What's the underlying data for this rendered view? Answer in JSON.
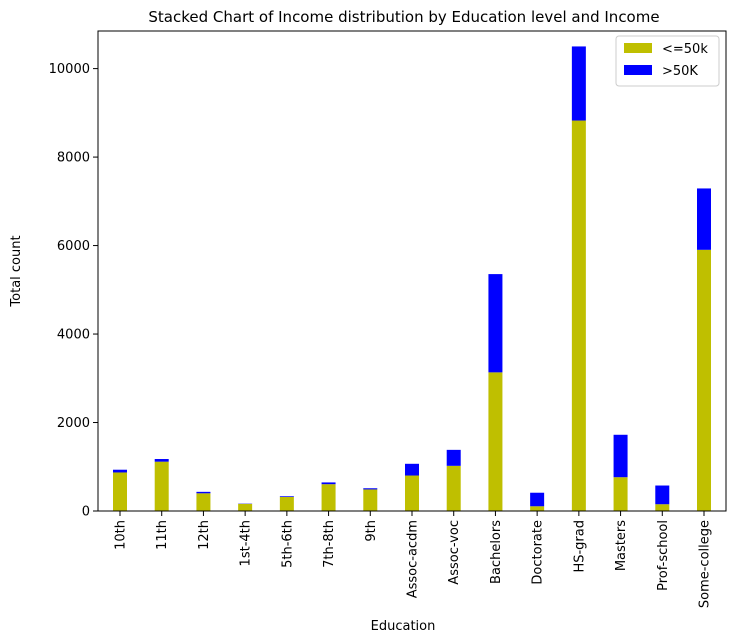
{
  "chart_data": {
    "type": "bar",
    "stacked": true,
    "title": "Stacked Chart of Income distribution by Education level and Income",
    "xlabel": "Education",
    "ylabel": "Total count",
    "ylim": [
      0,
      10850
    ],
    "yticks": [
      0,
      2000,
      4000,
      6000,
      8000,
      10000
    ],
    "grid": false,
    "legend_position": "top-right",
    "categories": [
      "10th",
      "11th",
      "12th",
      "1st-4th",
      "5th-6th",
      "7th-8th",
      "9th",
      "Assoc-acdm",
      "Assoc-voc",
      "Bachelors",
      "Doctorate",
      "HS-grad",
      "Masters",
      "Prof-school",
      "Some-college"
    ],
    "series": [
      {
        "name": "<=50k",
        "color": "#bfbf00",
        "values": [
          871,
          1115,
          400,
          162,
          317,
          606,
          487,
          802,
          1021,
          3134,
          107,
          8826,
          764,
          153,
          5904
        ]
      },
      {
        "name": ">50K",
        "color": "#0000ff",
        "values": [
          62,
          60,
          33,
          6,
          16,
          40,
          27,
          265,
          361,
          2221,
          306,
          1675,
          959,
          423,
          1387
        ]
      }
    ]
  }
}
